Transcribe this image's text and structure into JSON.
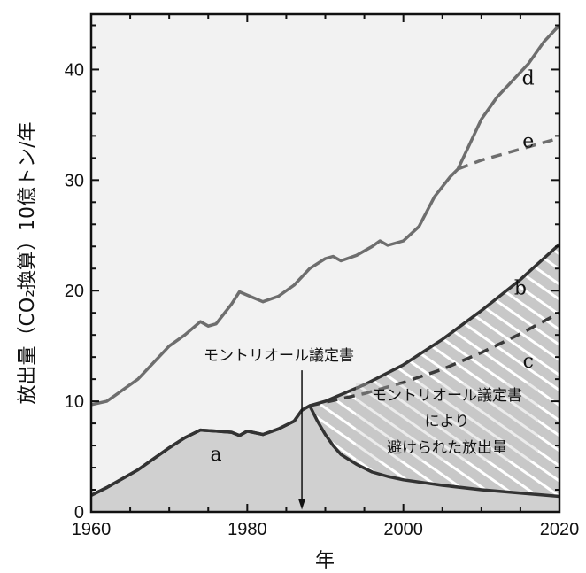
{
  "chart_data": {
    "type": "line",
    "xlabel": "年",
    "ylabel": "放出量（CO₂換算）10億トン/年",
    "xlim": [
      1960,
      2020
    ],
    "ylim": [
      0,
      45
    ],
    "xticks": [
      1960,
      1980,
      2000,
      2020
    ],
    "yticks": [
      0,
      10,
      20,
      30,
      40
    ],
    "grid": false,
    "series": [
      {
        "name": "d",
        "style": "solid",
        "color": "#666666",
        "x": [
          1960,
          1962,
          1964,
          1966,
          1968,
          1970,
          1972,
          1974,
          1975,
          1976,
          1978,
          1979,
          1980,
          1982,
          1984,
          1986,
          1988,
          1990,
          1991,
          1992,
          1994,
          1996,
          1997,
          1998,
          2000,
          2002,
          2004,
          2006,
          2007,
          2008,
          2010,
          2012,
          2014,
          2016,
          2018,
          2020
        ],
        "y": [
          9.7,
          10.0,
          11.0,
          12.0,
          13.5,
          15.0,
          16.0,
          17.2,
          16.8,
          17.0,
          18.8,
          19.9,
          19.6,
          19.0,
          19.5,
          20.5,
          22.0,
          22.9,
          23.1,
          22.7,
          23.2,
          24.0,
          24.5,
          24.1,
          24.5,
          25.8,
          28.5,
          30.3,
          31.0,
          32.5,
          35.5,
          37.5,
          39.0,
          40.5,
          42.5,
          44.0
        ]
      },
      {
        "name": "e",
        "style": "dashed",
        "color": "#666666",
        "x": [
          2007,
          2010,
          2013,
          2016,
          2020
        ],
        "y": [
          31.0,
          31.8,
          32.4,
          33.0,
          33.8
        ]
      },
      {
        "name": "b",
        "style": "solid",
        "color": "#333333",
        "x": [
          1960,
          1962,
          1964,
          1966,
          1968,
          1970,
          1972,
          1974,
          1976,
          1978,
          1979,
          1980,
          1982,
          1984,
          1986,
          1987,
          1988,
          1990,
          1995,
          2000,
          2005,
          2010,
          2015,
          2020
        ],
        "y": [
          1.5,
          2.2,
          3.0,
          3.8,
          4.8,
          5.8,
          6.7,
          7.4,
          7.3,
          7.2,
          6.9,
          7.3,
          7.0,
          7.5,
          8.2,
          9.2,
          9.6,
          10.0,
          11.5,
          13.3,
          15.6,
          18.2,
          21.0,
          24.2
        ]
      },
      {
        "name": "c",
        "style": "dashed",
        "color": "#333333",
        "x": [
          1988,
          1995,
          2000,
          2005,
          2010,
          2015,
          2020
        ],
        "y": [
          9.6,
          10.7,
          11.7,
          12.9,
          14.4,
          16.1,
          18.0
        ]
      },
      {
        "name": "a",
        "style": "solid",
        "color": "#333333",
        "x": [
          1960,
          1962,
          1964,
          1966,
          1968,
          1970,
          1972,
          1974,
          1976,
          1978,
          1979,
          1980,
          1982,
          1984,
          1986,
          1987,
          1988,
          1989,
          1990,
          1991,
          1992,
          1994,
          1996,
          1998,
          2000,
          2005,
          2010,
          2015,
          2020
        ],
        "y": [
          1.5,
          2.2,
          3.0,
          3.8,
          4.8,
          5.8,
          6.7,
          7.4,
          7.3,
          7.2,
          6.9,
          7.3,
          7.0,
          7.5,
          8.2,
          9.2,
          9.6,
          8.2,
          7.0,
          6.0,
          5.2,
          4.3,
          3.6,
          3.2,
          2.9,
          2.4,
          2.0,
          1.7,
          1.4
        ]
      }
    ],
    "series_labels": [
      {
        "text": "d",
        "x": 2016,
        "y": 39.2
      },
      {
        "text": "e",
        "x": 2016,
        "y": 33.5
      },
      {
        "text": "b",
        "x": 2015,
        "y": 20.2
      },
      {
        "text": "c",
        "x": 2016,
        "y": 13.6
      },
      {
        "text": "a",
        "x": 1976,
        "y": 5.2
      }
    ],
    "annotations": {
      "montreal_label": "モントリオール議定書",
      "montreal_year": 1987,
      "avoided_lines": [
        "モントリオール議定書",
        "により",
        "避けられた放出量"
      ]
    }
  }
}
